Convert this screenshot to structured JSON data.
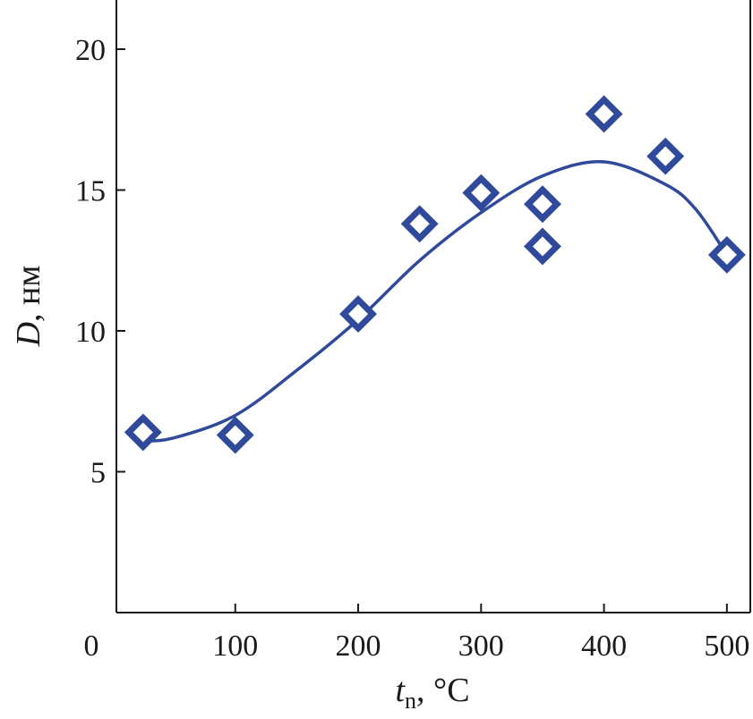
{
  "chart_data": {
    "type": "scatter",
    "title": "",
    "xlabel": {
      "main": "t",
      "sub": "n",
      "unit": ", °C"
    },
    "ylabel": {
      "main": "D",
      "unit": ", нм"
    },
    "xlim": [
      0,
      520
    ],
    "ylim": [
      0,
      22
    ],
    "xticks": [
      0,
      100,
      200,
      300,
      400,
      500
    ],
    "xtick_labels": [
      "0",
      "100",
      "200",
      "300",
      "400",
      "500"
    ],
    "yticks": [
      5,
      10,
      15,
      20
    ],
    "ytick_labels": [
      "5",
      "10",
      "15",
      "20"
    ],
    "grid": false,
    "legend": false,
    "series": [
      {
        "marker": "diamond-open",
        "color": "#2f4a9a",
        "points": [
          {
            "x": 25,
            "y": 6.4
          },
          {
            "x": 100,
            "y": 6.3
          },
          {
            "x": 200,
            "y": 10.6
          },
          {
            "x": 250,
            "y": 13.8
          },
          {
            "x": 300,
            "y": 14.9
          },
          {
            "x": 350,
            "y": 14.5
          },
          {
            "x": 350,
            "y": 13.0
          },
          {
            "x": 400,
            "y": 17.7
          },
          {
            "x": 450,
            "y": 16.2
          },
          {
            "x": 500,
            "y": 12.7
          }
        ]
      }
    ],
    "fit_curve": {
      "color": "#2f4a9a",
      "points": [
        {
          "x": 25,
          "y": 6.1
        },
        {
          "x": 50,
          "y": 6.2
        },
        {
          "x": 100,
          "y": 7.0
        },
        {
          "x": 150,
          "y": 8.6
        },
        {
          "x": 200,
          "y": 10.4
        },
        {
          "x": 250,
          "y": 12.5
        },
        {
          "x": 300,
          "y": 14.2
        },
        {
          "x": 350,
          "y": 15.5
        },
        {
          "x": 400,
          "y": 16.0
        },
        {
          "x": 450,
          "y": 15.2
        },
        {
          "x": 475,
          "y": 14.3
        },
        {
          "x": 500,
          "y": 12.7
        }
      ]
    }
  }
}
